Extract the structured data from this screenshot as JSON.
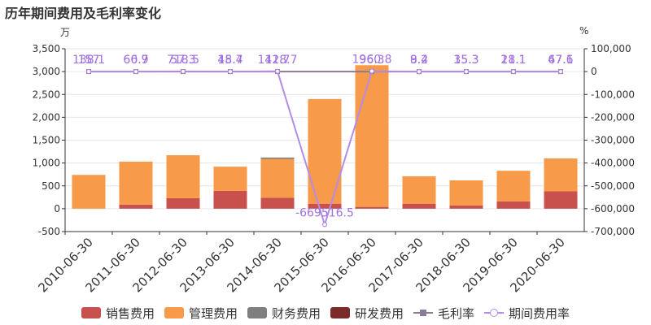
{
  "title": "历年期间费用及毛利率变化",
  "units": {
    "left": "万",
    "right": "%"
  },
  "colors": {
    "sales": "#c8514e",
    "admin": "#f79a4a",
    "finance": "#7f7f7f",
    "rnd": "#7b2b2b",
    "gross_margin": "#8c7b94",
    "expense_rate": "#b48ce8",
    "axis": "#333333",
    "grid": "#e6e6e6"
  },
  "legend": [
    {
      "key": "sales",
      "label": "销售费用",
      "kind": "bar"
    },
    {
      "key": "admin",
      "label": "管理费用",
      "kind": "bar"
    },
    {
      "key": "finance",
      "label": "财务费用",
      "kind": "bar"
    },
    {
      "key": "rnd",
      "label": "研发费用",
      "kind": "bar"
    },
    {
      "key": "gross_margin",
      "label": "毛利率",
      "kind": "line-square"
    },
    {
      "key": "expense_rate",
      "label": "期间费用率",
      "kind": "line-circle"
    }
  ],
  "chart_data": {
    "type": "bar",
    "stacked": true,
    "categories": [
      "2010-06-30",
      "2011-06-30",
      "2012-06-30",
      "2013-06-30",
      "2014-06-30",
      "2015-06-30",
      "2016-06-30",
      "2017-06-30",
      "2018-06-30",
      "2019-06-30",
      "2020-06-30"
    ],
    "series": [
      {
        "name": "销售费用",
        "key": "sales",
        "values": [
          0,
          90,
          230,
          390,
          240,
          110,
          40,
          110,
          70,
          160,
          380
        ]
      },
      {
        "name": "管理费用",
        "key": "admin",
        "values": [
          740,
          940,
          940,
          530,
          850,
          2290,
          3100,
          600,
          550,
          670,
          720
        ]
      },
      {
        "name": "财务费用",
        "key": "finance",
        "values": [
          0,
          0,
          0,
          0,
          30,
          0,
          0,
          0,
          0,
          0,
          0
        ]
      },
      {
        "name": "研发费用",
        "key": "rnd",
        "values": [
          0,
          0,
          0,
          0,
          0,
          0,
          0,
          0,
          0,
          0,
          0
        ]
      }
    ],
    "line_series": [
      {
        "name": "毛利率",
        "key": "gross_margin",
        "axis": "right",
        "values": [
          157,
          66.9,
          57.3,
          48.7,
          41.7,
          null,
          96.3,
          9.4,
          35.3,
          28.1,
          67.6
        ],
        "labels": [
          "157",
          "66.9",
          "57.3",
          "48.7",
          "41.7",
          "",
          "96.3",
          "9.4",
          "35.3",
          "28.1",
          "67.6"
        ]
      },
      {
        "name": "期间费用率",
        "key": "expense_rate",
        "axis": "right",
        "values": [
          138.1,
          60.7,
          718.5,
          15.4,
          1128.7,
          -669516.5,
          1960.8,
          8.2,
          15.3,
          11.1,
          47.1
        ],
        "labels": [
          "138.1",
          "60.7",
          "718.5",
          "15.4",
          "1128.7",
          "-669516.5",
          "1960.8",
          "8.2",
          "15.3",
          "11.1",
          "47.1"
        ]
      }
    ],
    "ylim_left": [
      -500,
      3500
    ],
    "yticks_left": [
      -500,
      0,
      500,
      1000,
      1500,
      2000,
      2500,
      3000,
      3500
    ],
    "ytick_labels_left": [
      "-500",
      "0",
      "500",
      "1,000",
      "1,500",
      "2,000",
      "2,500",
      "3,000",
      "3,500"
    ],
    "ylim_right": [
      -700000,
      100000
    ],
    "yticks_right": [
      -700000,
      -600000,
      -500000,
      -400000,
      -300000,
      -200000,
      -100000,
      0,
      100000
    ],
    "ytick_labels_right": [
      "-700,000",
      "-600,000",
      "-500,000",
      "-400,000",
      "-300,000",
      "-200,000",
      "-100,000",
      "0",
      "100,000"
    ],
    "grid": true,
    "legend_position": "bottom"
  }
}
